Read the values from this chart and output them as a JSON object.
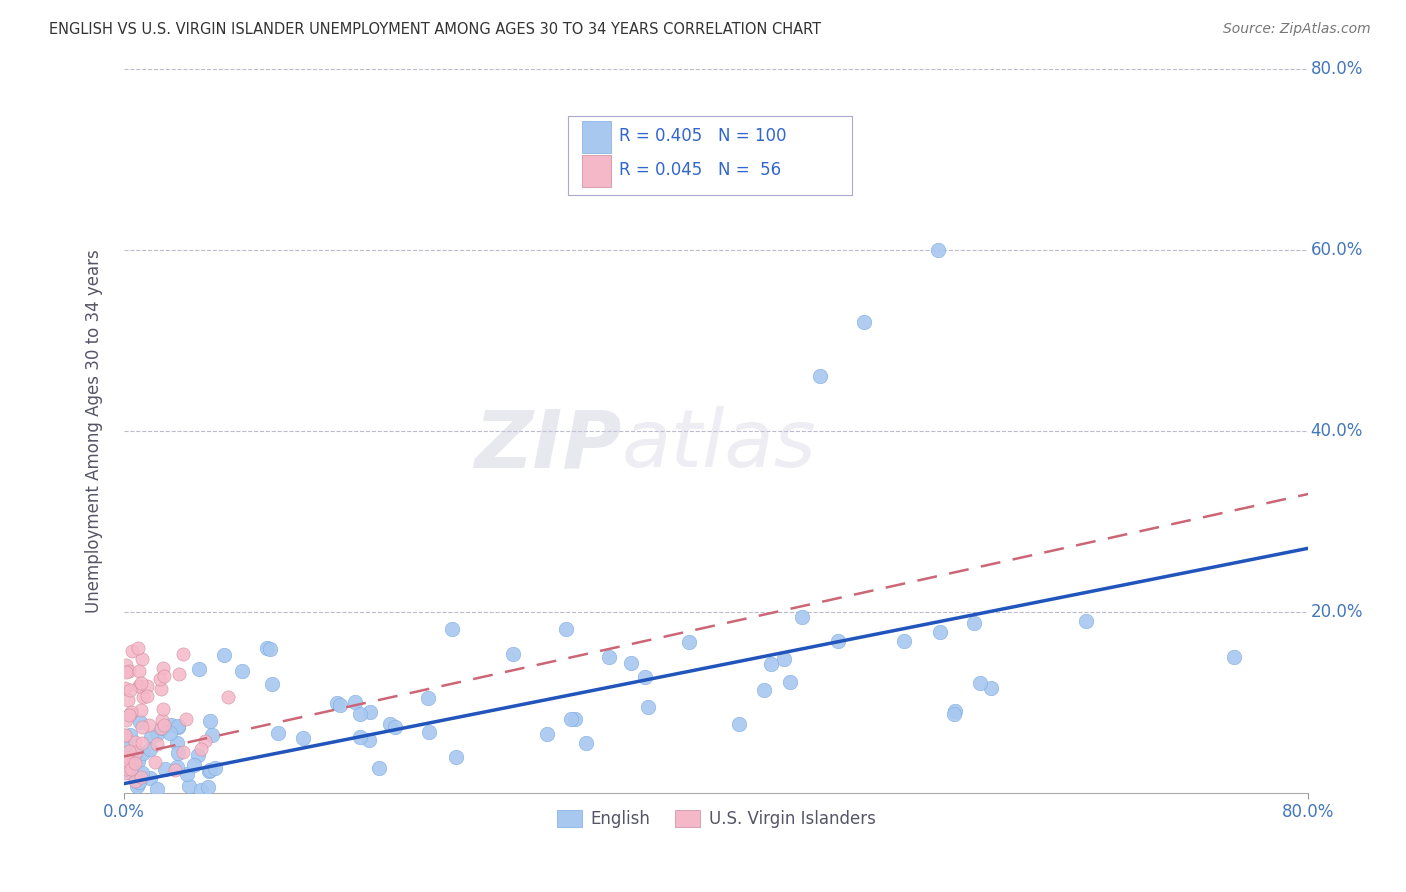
{
  "title": "ENGLISH VS U.S. VIRGIN ISLANDER UNEMPLOYMENT AMONG AGES 30 TO 34 YEARS CORRELATION CHART",
  "source": "Source: ZipAtlas.com",
  "ylabel": "Unemployment Among Ages 30 to 34 years",
  "xlim": [
    0.0,
    0.8
  ],
  "ylim": [
    0.0,
    0.8
  ],
  "english_R": 0.405,
  "english_N": 100,
  "virgin_R": 0.045,
  "virgin_N": 56,
  "english_color": "#a8c8f0",
  "virgin_color": "#f5b8c8",
  "english_line_color": "#2255bb",
  "virgin_line_color": "#cc6677",
  "watermark_zip": "ZIP",
  "watermark_atlas": "atlas",
  "legend_entries": [
    "English",
    "U.S. Virgin Islanders"
  ],
  "ytick_labels_right": [
    "80.0%",
    "60.0%",
    "40.0%",
    "20.0%"
  ],
  "ytick_vals_right": [
    0.8,
    0.6,
    0.4,
    0.2
  ],
  "eng_line_x0": 0.0,
  "eng_line_y0": 0.01,
  "eng_line_x1": 0.8,
  "eng_line_y1": 0.27,
  "vir_line_x0": 0.0,
  "vir_line_y0": 0.04,
  "vir_line_x1": 0.8,
  "vir_line_y1": 0.33
}
